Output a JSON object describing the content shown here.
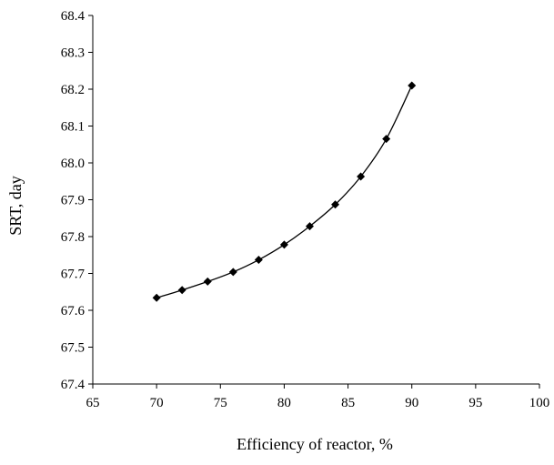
{
  "chart_data": {
    "type": "scatter",
    "title": "",
    "xlabel": "Efficiency of reactor, %",
    "ylabel": "SRT, day",
    "xlim": [
      65,
      100
    ],
    "ylim": [
      67.4,
      68.4
    ],
    "xticks": [
      "65",
      "70",
      "75",
      "80",
      "85",
      "90",
      "95",
      "100"
    ],
    "yticks": [
      "67.4",
      "67.5",
      "67.6",
      "67.7",
      "67.8",
      "67.9",
      "68.0",
      "68.1",
      "68.2",
      "68.3",
      "68.4"
    ],
    "grid": false,
    "legend": "none",
    "marker": "diamond",
    "line": "smooth",
    "series": [
      {
        "x": [
          70,
          72,
          74,
          76,
          78,
          80,
          82,
          84,
          86,
          88,
          90
        ],
        "y": [
          67.634,
          67.655,
          67.678,
          67.704,
          67.737,
          67.778,
          67.828,
          67.887,
          67.963,
          68.065,
          68.21
        ]
      }
    ]
  }
}
